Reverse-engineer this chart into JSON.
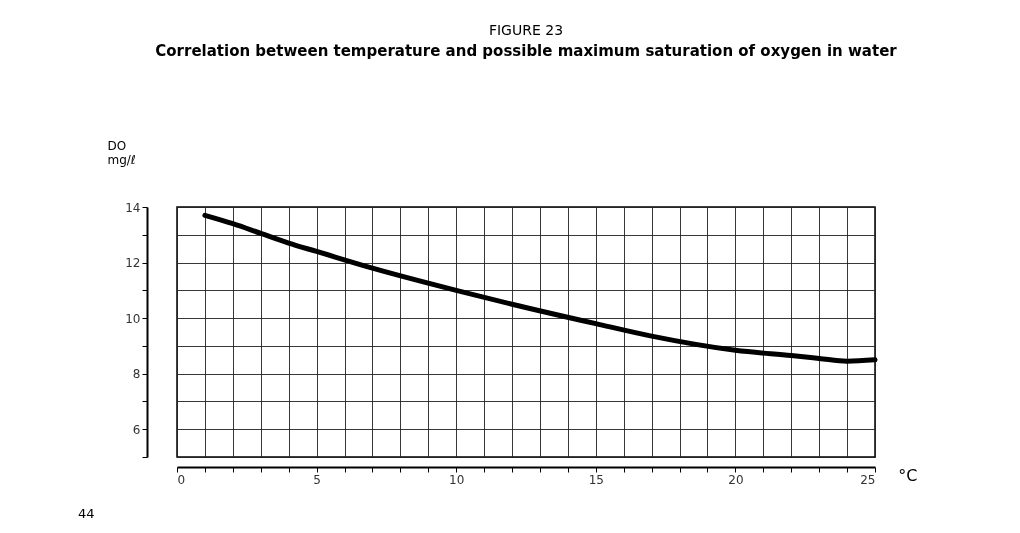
{
  "chart_data": {
    "type": "line",
    "title": "FIGURE 23",
    "subtitle": "Correlation between temperature and possible maximum saturation of oxygen in water",
    "xlabel": "°C",
    "ylabel": "DO mg/ℓ",
    "x": [
      1,
      2,
      3,
      4,
      5,
      7,
      10,
      12,
      15,
      17,
      20,
      22,
      23,
      24,
      25
    ],
    "series": [
      {
        "color": "#000000",
        "values": [
          13.7,
          13.4,
          13.05,
          12.7,
          12.4,
          11.8,
          11.0,
          10.5,
          9.8,
          9.35,
          8.84,
          8.65,
          8.55,
          8.45,
          8.5
        ]
      }
    ],
    "xlim": [
      0,
      25
    ],
    "ylim": [
      5,
      14
    ],
    "xticks": [
      0,
      {
        "value": 1,
        "label": null
      },
      {
        "value": 2,
        "label": null
      },
      {
        "value": 3,
        "label": null
      },
      {
        "value": 4,
        "label": null
      },
      5,
      {
        "value": 6,
        "label": null
      },
      {
        "value": 7,
        "label": null
      },
      {
        "value": 8,
        "label": null
      },
      {
        "value": 9,
        "label": null
      },
      10,
      {
        "value": 11,
        "label": null
      },
      {
        "value": 12,
        "label": null
      },
      {
        "value": 13,
        "label": null
      },
      {
        "value": 14,
        "label": null
      },
      15,
      {
        "value": 16,
        "label": null
      },
      {
        "value": 17,
        "label": null
      },
      {
        "value": 18,
        "label": null
      },
      {
        "value": 19,
        "label": null
      },
      20,
      {
        "value": 21,
        "label": null
      },
      {
        "value": 22,
        "label": null
      },
      {
        "value": 23,
        "label": null
      },
      {
        "value": 24,
        "label": null
      },
      25
    ],
    "yticks": [
      {
        "value": 5,
        "label": null
      },
      6,
      {
        "value": 7,
        "label": null
      },
      8,
      {
        "value": 9,
        "label": null
      },
      10,
      {
        "value": 11,
        "label": null
      },
      12,
      {
        "value": 13,
        "label": null
      },
      14
    ],
    "grid": true,
    "line_style": "solid",
    "marker": "none",
    "annotations": [
      "44"
    ]
  }
}
